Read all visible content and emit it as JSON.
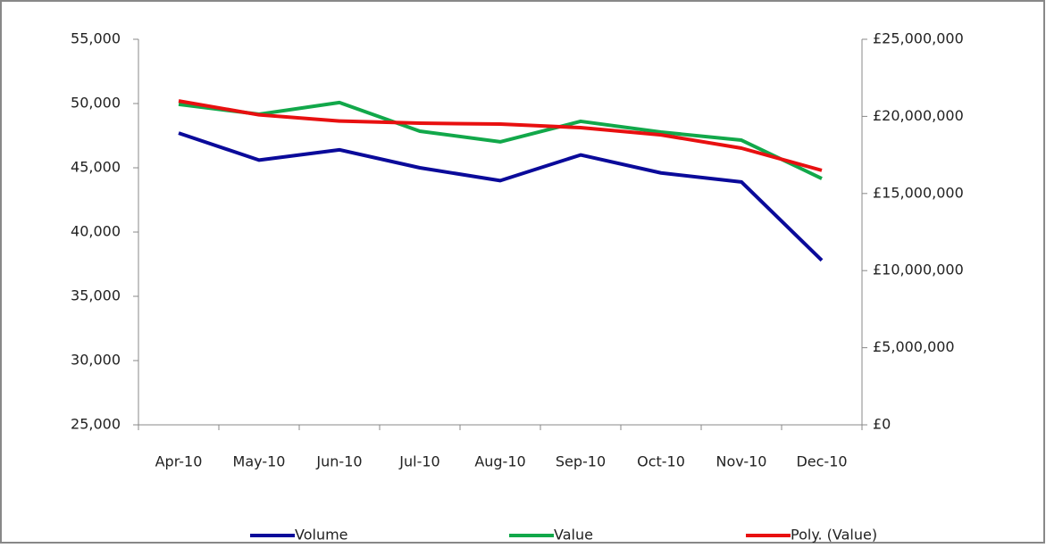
{
  "chart_data": {
    "type": "line",
    "categories": [
      "Apr-10",
      "May-10",
      "Jun-10",
      "Jul-10",
      "Aug-10",
      "Sep-10",
      "Oct-10",
      "Nov-10",
      "Dec-10"
    ],
    "series": [
      {
        "name": "Volume",
        "color": "#0a0a9a",
        "values": [
          47700,
          45600,
          46400,
          45000,
          44000,
          46000,
          44600,
          43900,
          37800
        ]
      },
      {
        "name": "Value",
        "color": "#12a84a",
        "axis": "y2",
        "values": [
          20780000,
          20140000,
          20900000,
          19040000,
          18350000,
          19680000,
          18980000,
          18460000,
          15970000
        ]
      },
      {
        "name": "Poly. (Value)",
        "color": "#e81010",
        "axis": "y2",
        "values": [
          21000000,
          20100000,
          19700000,
          19560000,
          19500000,
          19270000,
          18800000,
          17940000,
          16500000
        ]
      }
    ],
    "ylim": [
      25000,
      55000
    ],
    "yticks": [
      {
        "value": 25000,
        "label": "25,000"
      },
      {
        "value": 30000,
        "label": "30,000"
      },
      {
        "value": 35000,
        "label": "35,000"
      },
      {
        "value": 40000,
        "label": "40,000"
      },
      {
        "value": 45000,
        "label": "45,000"
      },
      {
        "value": 50000,
        "label": "50,000"
      },
      {
        "value": 55000,
        "label": "55,000"
      }
    ],
    "y2lim": [
      0,
      25000000
    ],
    "y2ticks": [
      {
        "value": 0,
        "label": "£0"
      },
      {
        "value": 5000000,
        "label": "£5,000,000"
      },
      {
        "value": 10000000,
        "label": "£10,000,000"
      },
      {
        "value": 15000000,
        "label": "£15,000,000"
      },
      {
        "value": 20000000,
        "label": "£20,000,000"
      },
      {
        "value": 25000000,
        "label": "£25,000,000"
      }
    ],
    "legend": "bottom"
  }
}
